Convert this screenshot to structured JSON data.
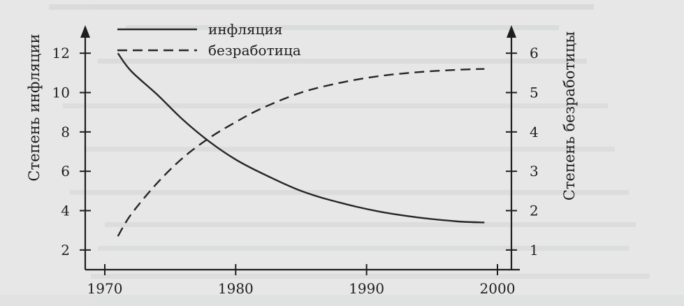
{
  "chart_data": {
    "type": "line",
    "title": "",
    "xlabel": "",
    "ylabel": "Степень инфляции",
    "y2label": "Степень безработицы",
    "x_ticks": [
      1970,
      1980,
      1990,
      2000
    ],
    "xlim": [
      1970,
      2000
    ],
    "ylim": [
      1,
      13
    ],
    "y_ticks": [
      2,
      4,
      6,
      8,
      10,
      12
    ],
    "y2lim": [
      0.5,
      6.5
    ],
    "y2_ticks": [
      1,
      2,
      3,
      4,
      5,
      6
    ],
    "grid": false,
    "legend": "top-left",
    "series": [
      {
        "name": "инфляция",
        "axis": "left",
        "style": "solid",
        "x": [
          1971,
          1972,
          1974,
          1976,
          1978,
          1980,
          1982,
          1985,
          1988,
          1991,
          1994,
          1997,
          1999
        ],
        "values": [
          12.0,
          11.1,
          9.9,
          8.6,
          7.5,
          6.6,
          5.9,
          5.0,
          4.4,
          3.95,
          3.65,
          3.45,
          3.4
        ]
      },
      {
        "name": "безработица",
        "axis": "right",
        "style": "dashed",
        "x": [
          1971,
          1972,
          1974,
          1976,
          1978,
          1980,
          1982,
          1985,
          1988,
          1991,
          1994,
          1997,
          1999
        ],
        "values": [
          1.35,
          1.9,
          2.7,
          3.35,
          3.85,
          4.25,
          4.6,
          5.0,
          5.25,
          5.42,
          5.52,
          5.58,
          5.6
        ]
      }
    ]
  }
}
